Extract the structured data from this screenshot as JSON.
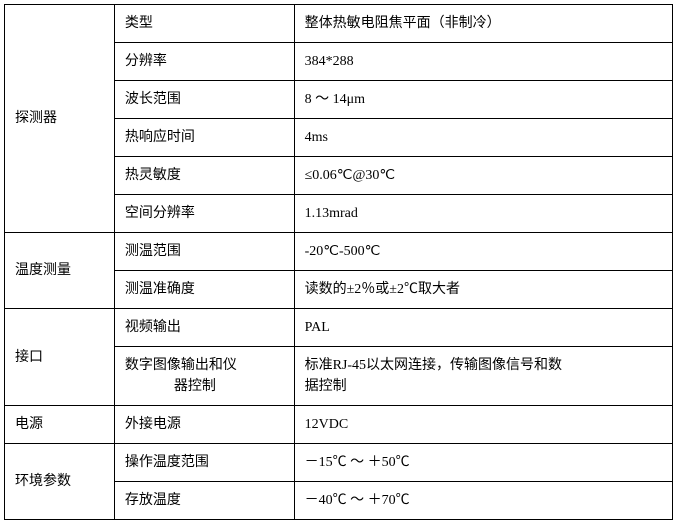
{
  "table": {
    "sections": [
      {
        "category": "探测器",
        "rows": [
          {
            "param": "类型",
            "value": "整体热敏电阻焦平面（非制冷）"
          },
          {
            "param": "分辨率",
            "value": "384*288"
          },
          {
            "param": "波长范围",
            "value": "8 ～ 14μm"
          },
          {
            "param": "热响应时间",
            "value": "4ms"
          },
          {
            "param": "热灵敏度",
            "value": "≤0.06℃@30℃"
          },
          {
            "param": "空间分辨率",
            "value": "1.13mrad"
          }
        ]
      },
      {
        "category": "温度测量",
        "rows": [
          {
            "param": "测温范围",
            "value": "-20℃-500℃"
          },
          {
            "param": "测温准确度",
            "value": "读数的±2％或±2℃取大者"
          }
        ]
      },
      {
        "category": "接口",
        "rows": [
          {
            "param": "视频输出",
            "value": "PAL"
          },
          {
            "param_line1": "数字图像输出和仪",
            "param_line2": "器控制",
            "value_line1": "标准RJ-45以太网连接，传输图像信号和数",
            "value_line2": "据控制",
            "multiline": true
          }
        ]
      },
      {
        "category": "电源",
        "rows": [
          {
            "param": "外接电源",
            "value": "12VDC"
          }
        ]
      },
      {
        "category": "环境参数",
        "rows": [
          {
            "param": "操作温度范围",
            "value": "－15℃ ～ ＋50℃"
          },
          {
            "param": "存放温度",
            "value": "－40℃ ～ ＋70℃"
          }
        ]
      }
    ]
  }
}
